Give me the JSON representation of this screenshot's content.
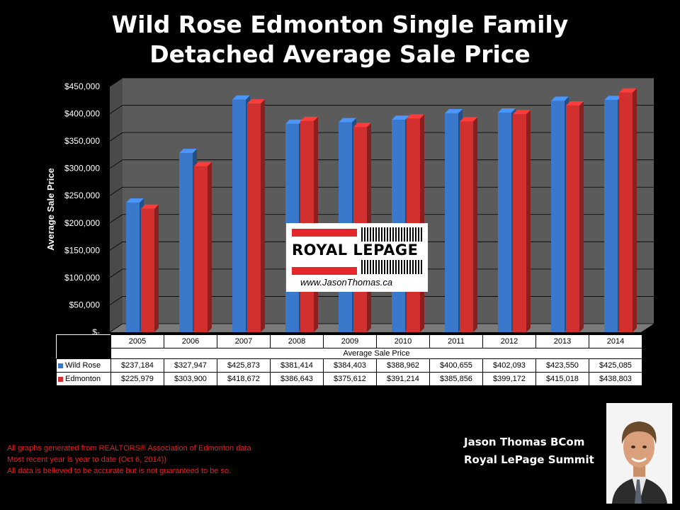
{
  "title_line1": "Wild Rose Edmonton Single Family",
  "title_line2": "Detached Average Sale Price",
  "chart_data": {
    "type": "bar",
    "title": "Wild Rose Edmonton Single Family Detached Average Sale Price",
    "ylabel": "Average Sale Price",
    "xlabel": "Average Sale Price",
    "ylim": [
      0,
      450000
    ],
    "yticks": [
      "$-",
      "$50,000",
      "$100,000",
      "$150,000",
      "$200,000",
      "$250,000",
      "$300,000",
      "$350,000",
      "$400,000",
      "$450,000"
    ],
    "categories": [
      "2005",
      "2006",
      "2007",
      "2008",
      "2009",
      "2010",
      "2011",
      "2012",
      "2013",
      "2014"
    ],
    "series": [
      {
        "name": "Wild Rose",
        "color": "#3a78cc",
        "values": [
          237184,
          327947,
          425873,
          381414,
          384403,
          388962,
          400655,
          402093,
          423550,
          425085
        ],
        "labels": [
          "$237,184",
          "$327,947",
          "$425,873",
          "$381,414",
          "$384,403",
          "$388,962",
          "$400,655",
          "$402,093",
          "$423,550",
          "$425,085"
        ]
      },
      {
        "name": "Edmonton",
        "color": "#d2302f",
        "values": [
          225979,
          303900,
          418672,
          386643,
          375612,
          391214,
          385856,
          399172,
          415018,
          438803
        ],
        "labels": [
          "$225,979",
          "$303,900",
          "$418,672",
          "$386,643",
          "$375,612",
          "$391,214",
          "$385,856",
          "$399,172",
          "$415,018",
          "$438,803"
        ]
      }
    ],
    "grid": true,
    "legend": "data-table"
  },
  "logo": {
    "brand": "ROYAL LEPAGE",
    "site": "www.JasonThomas.ca"
  },
  "notes": [
    "All graphs generated from REALTORS® Association of Edmonton data",
    "Most recent year is year to date (Oct 6, 2014))",
    "All data is believed to be accurate but is not guaranteed to be so."
  ],
  "agent": {
    "name": "Jason Thomas BCom",
    "company": "Royal LePage Summit"
  }
}
